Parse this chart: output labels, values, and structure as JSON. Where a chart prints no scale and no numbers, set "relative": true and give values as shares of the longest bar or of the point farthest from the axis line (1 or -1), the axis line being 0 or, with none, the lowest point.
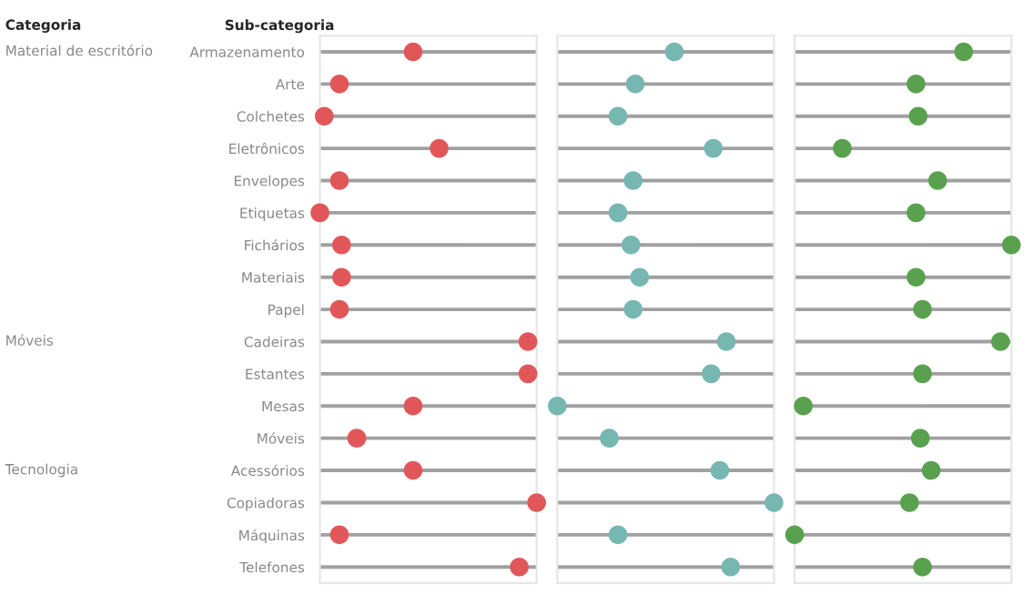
{
  "chart_data": [
    {
      "type": "scatter",
      "orientation": "horizontal",
      "relative": true,
      "ylabel": "Sub-categoria",
      "tick_labels": "y",
      "grid": "y",
      "marker": "circle",
      "categories": [
        "Armazenamento",
        "Arte",
        "Colchetes",
        "Eletrônicos",
        "Envelopes",
        "Etiquetas",
        "Fichários",
        "Materiais",
        "Papel",
        "Cadeiras",
        "Estantes",
        "Mesas",
        "Móveis",
        "Acessórios",
        "Copiadoras",
        "Máquinas",
        "Telefones"
      ],
      "y2_categories": [
        "Material de escritório",
        null,
        null,
        null,
        null,
        null,
        null,
        null,
        null,
        "Móveis",
        null,
        null,
        null,
        "Tecnologia",
        null,
        null,
        null
      ],
      "series": [
        {
          "color": "#e15759",
          "values": [
            0.43,
            0.09,
            0.02,
            0.55,
            0.09,
            0,
            0.1,
            0.1,
            0.09,
            0.96,
            0.96,
            0.43,
            0.17,
            0.43,
            1,
            0.09,
            0.92
          ]
        }
      ],
      "annotations": [
        "Categoria"
      ]
    },
    {
      "type": "scatter",
      "orientation": "horizontal",
      "relative": true,
      "tick_labels": false,
      "grid": "y",
      "marker": "circle",
      "categories": [
        null,
        null,
        null,
        null,
        null,
        null,
        null,
        null,
        null,
        null,
        null,
        null,
        null,
        null,
        null,
        null,
        null
      ],
      "series": [
        {
          "color": "#76b7b2",
          "values": [
            0.54,
            0.36,
            0.28,
            0.72,
            0.35,
            0.28,
            0.34,
            0.38,
            0.35,
            0.78,
            0.71,
            0,
            0.24,
            0.75,
            1,
            0.28,
            0.8
          ]
        }
      ]
    },
    {
      "type": "scatter",
      "orientation": "horizontal",
      "relative": true,
      "tick_labels": false,
      "grid": "y",
      "marker": "circle",
      "categories": [
        null,
        null,
        null,
        null,
        null,
        null,
        null,
        null,
        null,
        null,
        null,
        null,
        null,
        null,
        null,
        null,
        null
      ],
      "series": [
        {
          "color": "#59a14f",
          "values": [
            0.78,
            0.56,
            0.57,
            0.22,
            0.66,
            0.56,
            1,
            0.56,
            0.59,
            0.95,
            0.59,
            0.04,
            0.58,
            0.63,
            0.53,
            0,
            0.59
          ]
        }
      ]
    }
  ]
}
